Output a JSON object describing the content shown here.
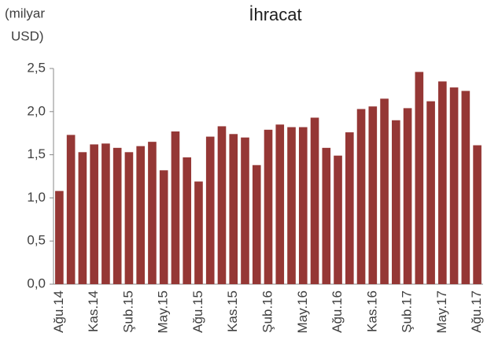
{
  "chart_data": {
    "type": "bar",
    "title": "İhracat",
    "y_label_lines": [
      "(milyar",
      "USD)"
    ],
    "categories": [
      "Ağu.14",
      null,
      null,
      "Kas.14",
      null,
      null,
      "Şub.15",
      null,
      null,
      "May.15",
      null,
      null,
      "Ağu.15",
      null,
      null,
      "Kas.15",
      null,
      null,
      "Şub.16",
      null,
      null,
      "May.16",
      null,
      null,
      "Ağu.16",
      null,
      null,
      "Kas.16",
      null,
      null,
      "Şub.17",
      null,
      null,
      "May.17",
      null,
      null,
      "Ağu.17"
    ],
    "values": [
      1.08,
      1.73,
      1.53,
      1.62,
      1.63,
      1.58,
      1.53,
      1.6,
      1.65,
      1.32,
      1.77,
      1.47,
      1.19,
      1.71,
      1.83,
      1.74,
      1.7,
      1.38,
      1.79,
      1.85,
      1.82,
      1.82,
      1.93,
      1.58,
      1.49,
      1.76,
      2.03,
      2.06,
      2.15,
      1.9,
      2.04,
      2.46,
      2.12,
      2.35,
      2.28,
      2.24,
      1.61
    ],
    "color": "#953735",
    "ylim": [
      0,
      2.5
    ],
    "yticks": [
      {
        "value": 0,
        "label": "0,0"
      },
      {
        "value": 0.5,
        "label": "0,5"
      },
      {
        "value": 1,
        "label": "1,0"
      },
      {
        "value": 1.5,
        "label": "1,5"
      },
      {
        "value": 2,
        "label": "2,0"
      },
      {
        "value": 2.5,
        "label": "2,5"
      }
    ],
    "grid": false
  }
}
